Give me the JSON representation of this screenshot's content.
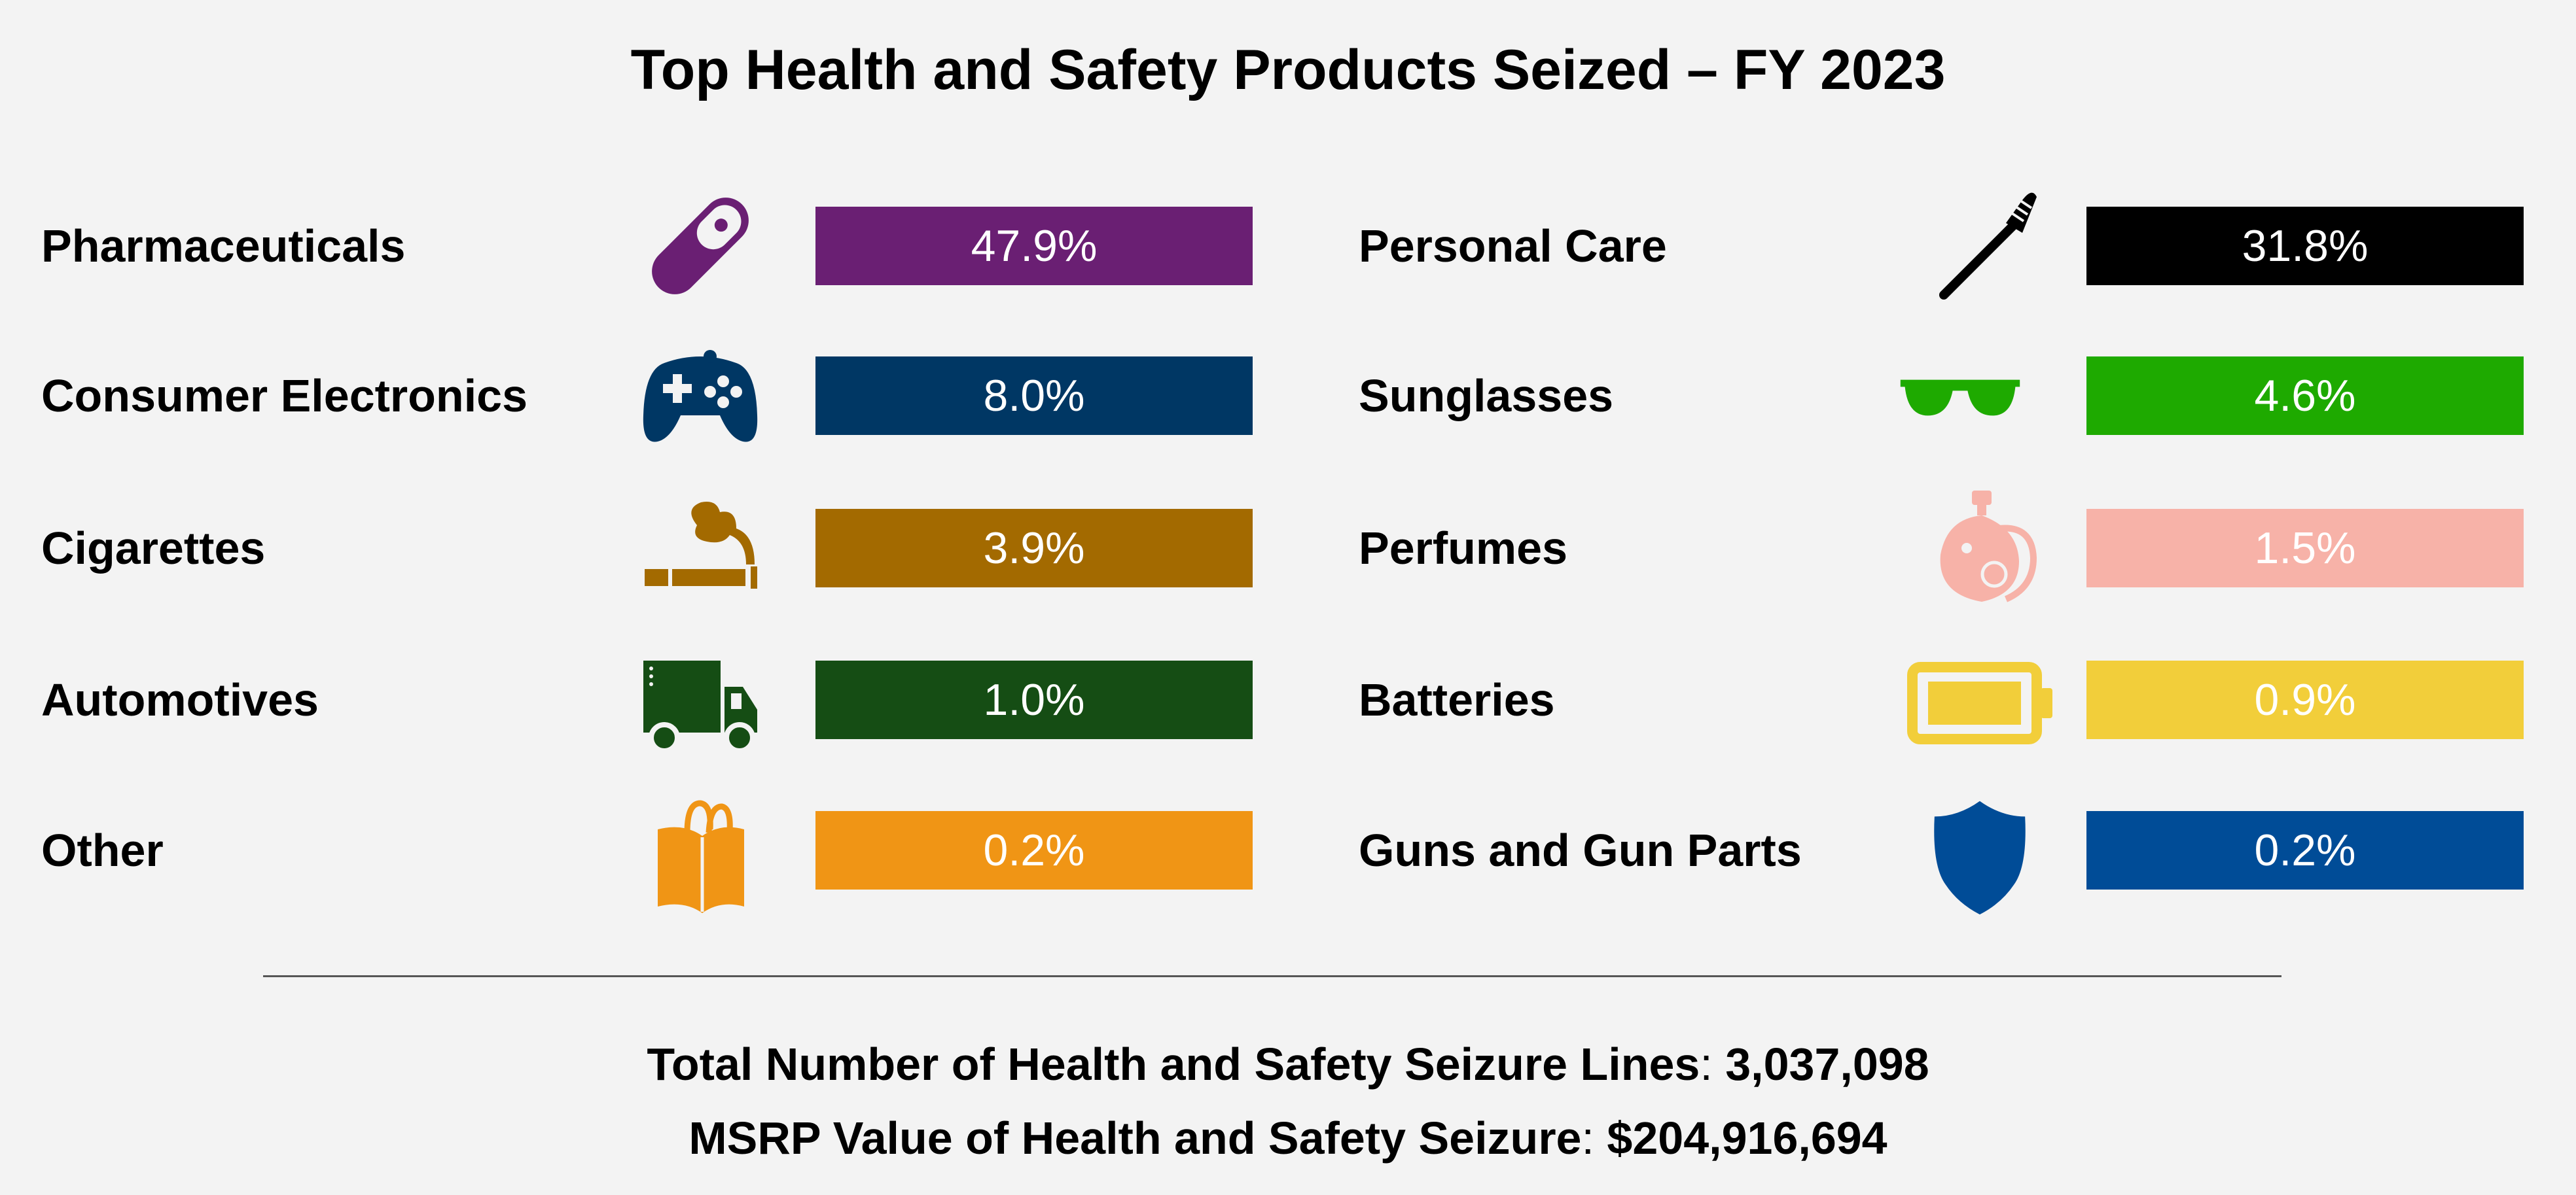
{
  "chart_data": {
    "type": "table",
    "title": "Top Health and Safety Products Seized – FY 2023",
    "categories": [
      {
        "name": "Pharmaceuticals",
        "value": 47.9,
        "label": "47.9%",
        "color": "#6a1f73",
        "icon": "pill-icon"
      },
      {
        "name": "Personal Care",
        "value": 31.8,
        "label": "31.8%",
        "color": "#000000",
        "icon": "toothbrush-icon"
      },
      {
        "name": "Consumer Electronics",
        "value": 8.0,
        "label": "8.0%",
        "color": "#003764",
        "icon": "gamepad-icon"
      },
      {
        "name": "Sunglasses",
        "value": 4.6,
        "label": "4.6%",
        "color": "#1eaa00",
        "icon": "sunglasses-icon"
      },
      {
        "name": "Cigarettes",
        "value": 3.9,
        "label": "3.9%",
        "color": "#a36a00",
        "icon": "cigarette-icon"
      },
      {
        "name": "Perfumes",
        "value": 1.5,
        "label": "1.5%",
        "color": "#f7b2a8",
        "icon": "perfume-icon"
      },
      {
        "name": "Automotives",
        "value": 1.0,
        "label": "1.0%",
        "color": "#154d14",
        "icon": "truck-icon"
      },
      {
        "name": "Batteries",
        "value": 0.9,
        "label": "0.9%",
        "color": "#f2ce3a",
        "icon": "battery-icon"
      },
      {
        "name": "Other",
        "value": 0.2,
        "label": "0.2%",
        "color": "#f09515",
        "icon": "shopping-bag-icon"
      },
      {
        "name": "Guns and Gun Parts",
        "value": 0.2,
        "label": "0.2%",
        "color": "#004c97",
        "icon": "shield-icon"
      }
    ]
  },
  "summary": {
    "lines_label": "Total Number of Health and Safety Seizure Lines",
    "lines_value": "3,037,098",
    "msrp_label": "MSRP Value of Health and Safety Seizure",
    "msrp_value": "$204,916,694"
  }
}
